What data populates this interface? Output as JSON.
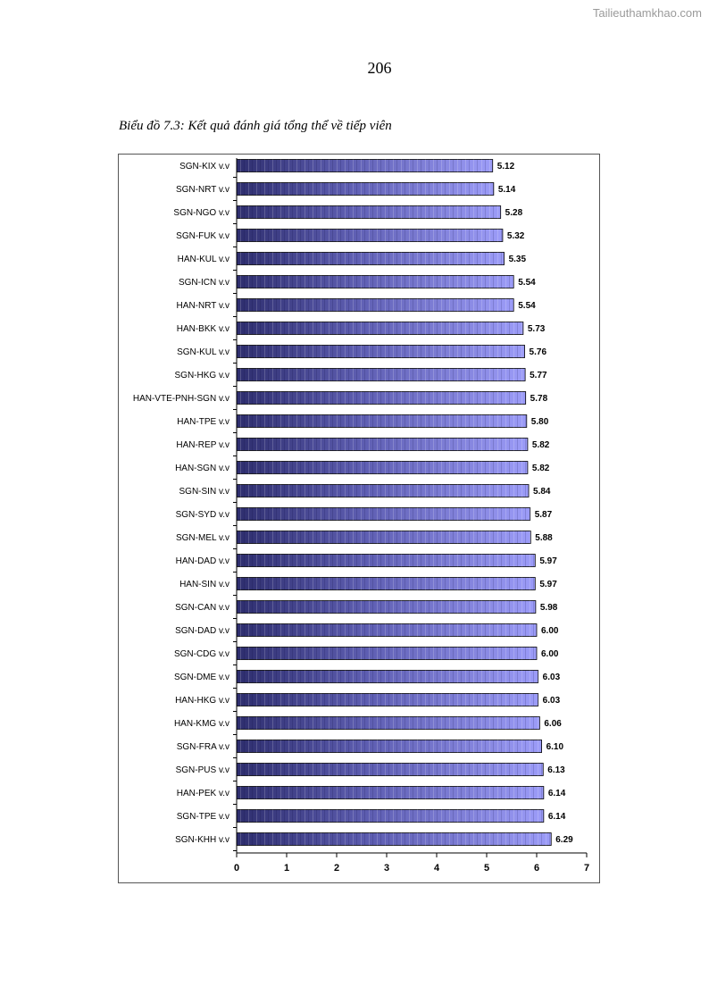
{
  "watermark": "Tailieuthamkhao.com",
  "page_number": "206",
  "caption": "Biểu đồ 7.3: Kết quả đánh giá tổng thể về tiếp viên",
  "colors": {
    "bar_dark": "#2e2e6e",
    "bar_light": "#9c9cf8",
    "bar_border": "#000000"
  },
  "chart_data": {
    "type": "bar",
    "orientation": "horizontal",
    "title": "Biểu đồ 7.3: Kết quả đánh giá tổng thể về tiếp viên",
    "xlabel": "",
    "ylabel": "",
    "xlim": [
      0,
      7
    ],
    "ticks": [
      "0",
      "1",
      "2",
      "3",
      "4",
      "5",
      "6",
      "7"
    ],
    "grid": false,
    "legend": false,
    "categories": [
      "SGN-KIX v.v",
      "SGN-NRT v.v",
      "SGN-NGO v.v",
      "SGN-FUK v.v",
      "HAN-KUL v.v",
      "SGN-ICN v.v",
      "HAN-NRT v.v",
      "HAN-BKK v.v",
      "SGN-KUL v.v",
      "SGN-HKG v.v",
      "HAN-VTE-PNH-SGN v.v",
      "HAN-TPE v.v",
      "HAN-REP v.v",
      "HAN-SGN v.v",
      "SGN-SIN v.v",
      "SGN-SYD v.v",
      "SGN-MEL v.v",
      "HAN-DAD v.v",
      "HAN-SIN v.v",
      "SGN-CAN v.v",
      "SGN-DAD v.v",
      "SGN-CDG v.v",
      "SGN-DME v.v",
      "HAN-HKG v.v",
      "HAN-KMG v.v",
      "SGN-FRA v.v",
      "SGN-PUS v.v",
      "HAN-PEK v.v",
      "SGN-TPE v.v",
      "SGN-KHH v.v"
    ],
    "values": [
      5.12,
      5.14,
      5.28,
      5.32,
      5.35,
      5.54,
      5.54,
      5.73,
      5.76,
      5.77,
      5.78,
      5.8,
      5.82,
      5.82,
      5.84,
      5.87,
      5.88,
      5.97,
      5.97,
      5.98,
      6.0,
      6.0,
      6.03,
      6.03,
      6.06,
      6.1,
      6.13,
      6.14,
      6.14,
      6.29
    ],
    "value_labels": [
      "5.12",
      "5.14",
      "5.28",
      "5.32",
      "5.35",
      "5.54",
      "5.54",
      "5.73",
      "5.76",
      "5.77",
      "5.78",
      "5.80",
      "5.82",
      "5.82",
      "5.84",
      "5.87",
      "5.88",
      "5.97",
      "5.97",
      "5.98",
      "6.00",
      "6.00",
      "6.03",
      "6.03",
      "6.06",
      "6.10",
      "6.13",
      "6.14",
      "6.14",
      "6.29"
    ]
  }
}
